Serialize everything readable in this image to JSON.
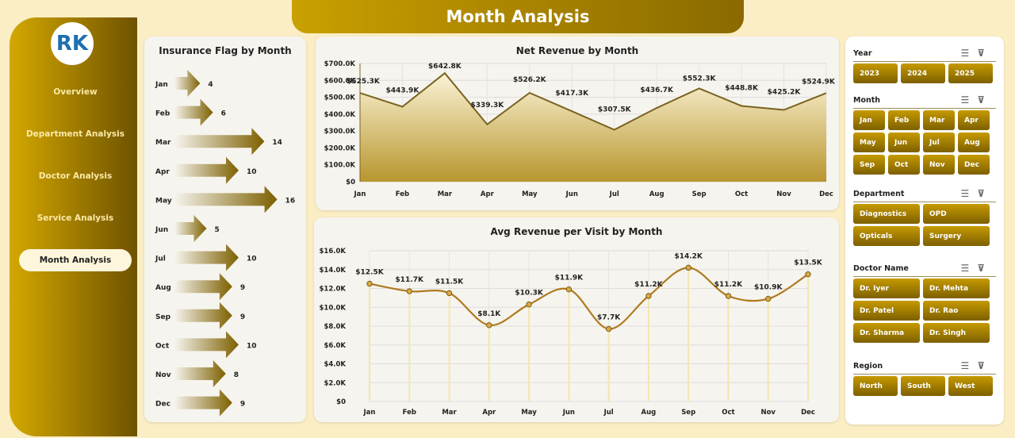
{
  "header": {
    "title": "Month Analysis"
  },
  "sidebar": {
    "logo_text": "RK",
    "items": [
      {
        "label": "Overview"
      },
      {
        "label": "Department Analysis"
      },
      {
        "label": "Doctor Analysis"
      },
      {
        "label": "Service Analysis"
      },
      {
        "label": "Month Analysis",
        "active": true
      }
    ]
  },
  "insurance": {
    "title": "Insurance Flag by Month",
    "months": [
      "Jan",
      "Feb",
      "Mar",
      "Apr",
      "May",
      "Jun",
      "Jul",
      "Aug",
      "Sep",
      "Oct",
      "Nov",
      "Dec"
    ],
    "values": [
      4,
      6,
      14,
      10,
      16,
      5,
      10,
      9,
      9,
      10,
      8,
      9
    ]
  },
  "chart_data": [
    {
      "type": "area",
      "title": "Net Revenue by Month",
      "categories": [
        "Jan",
        "Feb",
        "Mar",
        "Apr",
        "May",
        "Jun",
        "Jul",
        "Aug",
        "Sep",
        "Oct",
        "Nov",
        "Dec"
      ],
      "values": [
        525.3,
        443.9,
        642.8,
        339.3,
        526.2,
        417.3,
        307.5,
        436.7,
        552.3,
        448.8,
        425.2,
        524.9
      ],
      "labels": [
        "$525.3K",
        "$443.9K",
        "$642.8K",
        "$339.3K",
        "$526.2K",
        "$417.3K",
        "$307.5K",
        "$436.7K",
        "$552.3K",
        "$448.8K",
        "$425.2K",
        "$524.9K"
      ],
      "unit": "K",
      "ylim": [
        0,
        700
      ],
      "yticks": [
        "$0",
        "$100.0K",
        "$200.0K",
        "$300.0K",
        "$400.0K",
        "$500.0K",
        "$600.0K",
        "$700.0K"
      ],
      "grid": true
    },
    {
      "type": "line",
      "title": "Avg Revenue per Visit by Month",
      "categories": [
        "Jan",
        "Feb",
        "Mar",
        "Apr",
        "May",
        "Jun",
        "Jul",
        "Aug",
        "Sep",
        "Oct",
        "Nov",
        "Dec"
      ],
      "values": [
        12.5,
        11.7,
        11.5,
        8.1,
        10.3,
        11.9,
        7.7,
        11.2,
        14.2,
        11.2,
        10.9,
        13.5
      ],
      "labels": [
        "$12.5K",
        "$11.7K",
        "$11.5K",
        "$8.1K",
        "$10.3K",
        "$11.9K",
        "$7.7K",
        "$11.2K",
        "$14.2K",
        "$11.2K",
        "$10.9K",
        "$13.5K"
      ],
      "unit": "K",
      "ylim": [
        0,
        16
      ],
      "yticks": [
        "$0",
        "$2.0K",
        "$4.0K",
        "$6.0K",
        "$8.0K",
        "$10.0K",
        "$12.0K",
        "$14.0K",
        "$16.0K"
      ],
      "grid": true,
      "smooth": true
    }
  ],
  "slicers": [
    {
      "label": "Year",
      "items": [
        "2023",
        "2024",
        "2025"
      ]
    },
    {
      "label": "Month",
      "items": [
        "Jan",
        "Feb",
        "Mar",
        "Apr",
        "May",
        "Jun",
        "Jul",
        "Aug",
        "Sep",
        "Oct",
        "Nov",
        "Dec"
      ]
    },
    {
      "label": "Department",
      "items": [
        "Diagnostics",
        "OPD",
        "Opticals",
        "Surgery"
      ]
    },
    {
      "label": "Doctor Name",
      "items": [
        "Dr. Iyer",
        "Dr. Mehta",
        "Dr. Patel",
        "Dr. Rao",
        "Dr. Sharma",
        "Dr. Singh"
      ]
    },
    {
      "label": "Region",
      "items": [
        "North",
        "South",
        "West"
      ]
    }
  ],
  "colors": {
    "gold": "#c59a00",
    "dark_gold": "#7d6000",
    "line": "#7a6320",
    "background": "#fbeec4"
  }
}
